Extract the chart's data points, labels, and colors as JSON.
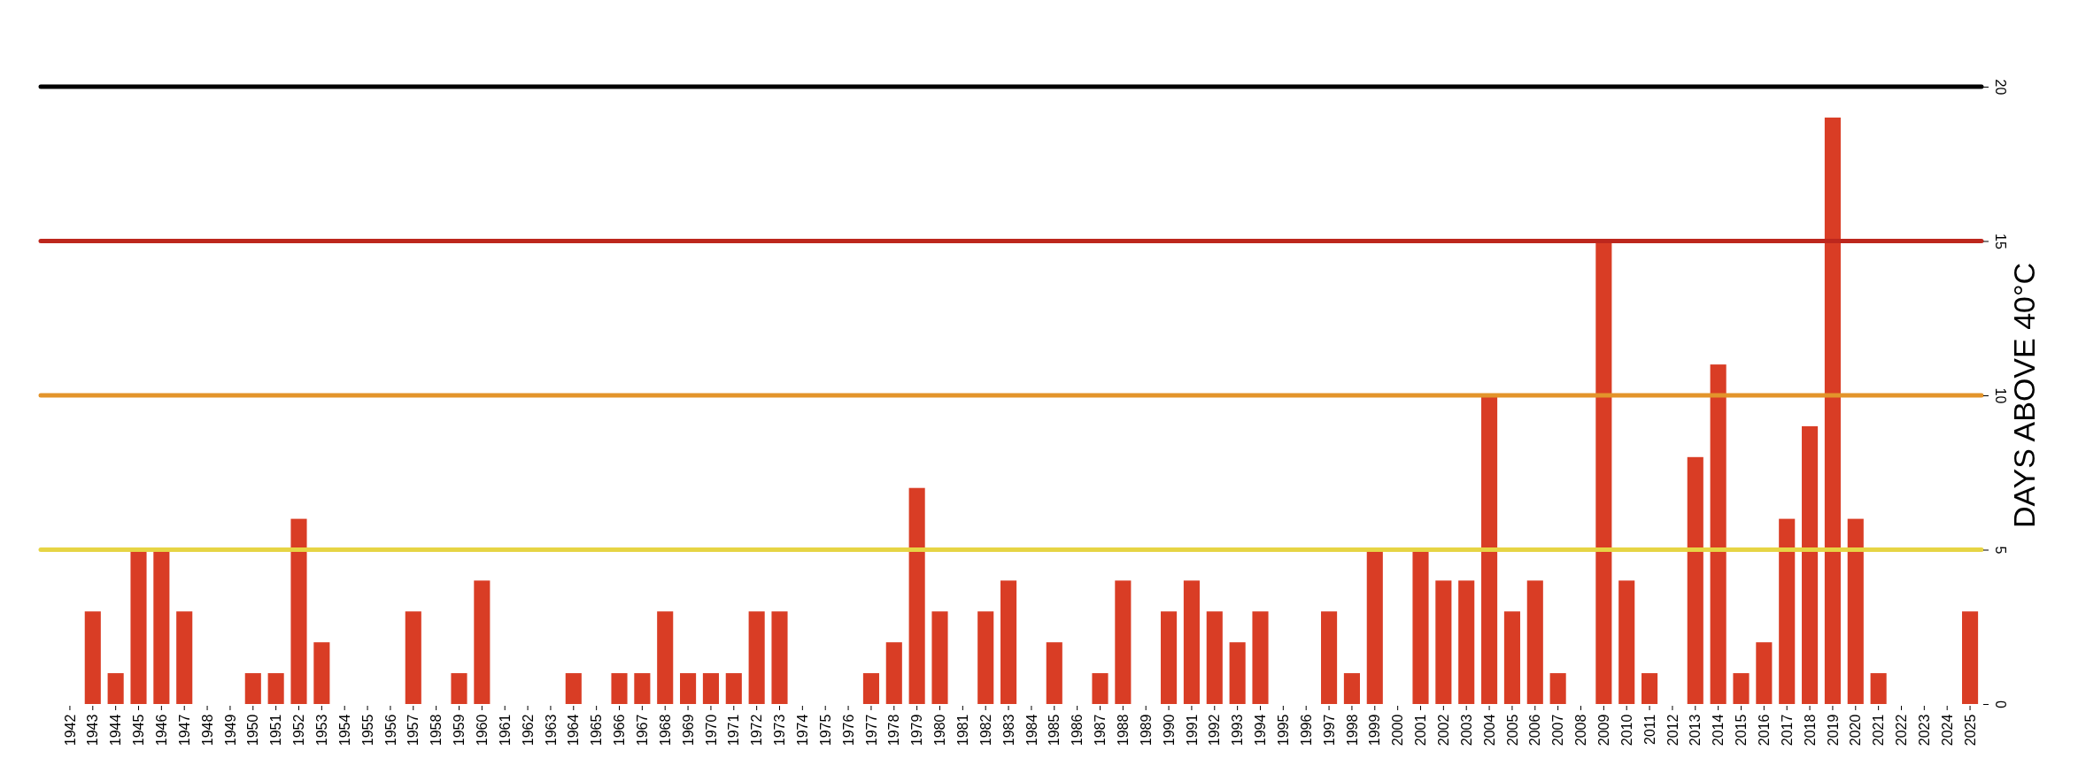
{
  "chart_data": {
    "type": "bar",
    "ylabel": "DAYS ABOVE 40°C",
    "categories": [
      "1942",
      "1943",
      "1944",
      "1945",
      "1946",
      "1947",
      "1948",
      "1949",
      "1950",
      "1951",
      "1952",
      "1953",
      "1954",
      "1955",
      "1956",
      "1957",
      "1958",
      "1959",
      "1960",
      "1961",
      "1962",
      "1963",
      "1964",
      "1965",
      "1966",
      "1967",
      "1968",
      "1969",
      "1970",
      "1971",
      "1972",
      "1973",
      "1974",
      "1975",
      "1976",
      "1977",
      "1978",
      "1979",
      "1980",
      "1981",
      "1982",
      "1983",
      "1984",
      "1985",
      "1986",
      "1987",
      "1988",
      "1989",
      "1990",
      "1991",
      "1992",
      "1993",
      "1994",
      "1995",
      "1996",
      "1997",
      "1998",
      "1999",
      "2000",
      "2001",
      "2002",
      "2003",
      "2004",
      "2005",
      "2006",
      "2007",
      "2008",
      "2009",
      "2010",
      "2011",
      "2012",
      "2013",
      "2014",
      "2015",
      "2016",
      "2017",
      "2018",
      "2019",
      "2020",
      "2021",
      "2022",
      "2023",
      "2024",
      "2025"
    ],
    "values": [
      0,
      3,
      1,
      5,
      5,
      3,
      0,
      0,
      1,
      1,
      6,
      2,
      0,
      0,
      0,
      3,
      0,
      1,
      4,
      0,
      0,
      0,
      1,
      0,
      1,
      1,
      3,
      1,
      1,
      1,
      3,
      3,
      0,
      0,
      0,
      1,
      2,
      7,
      3,
      0,
      3,
      4,
      0,
      2,
      0,
      1,
      4,
      0,
      3,
      4,
      3,
      2,
      3,
      0,
      0,
      3,
      1,
      5,
      0,
      5,
      4,
      4,
      10,
      3,
      4,
      1,
      0,
      15,
      4,
      1,
      0,
      8,
      11,
      1,
      2,
      6,
      9,
      19,
      6,
      1,
      0,
      0,
      0,
      3
    ],
    "color": "#d93d25",
    "ylim": [
      0,
      20
    ],
    "yticks": [
      0,
      5,
      10,
      15,
      20
    ],
    "ref_lines": [
      {
        "axis": "y",
        "value": 5,
        "color": "#e6d444"
      },
      {
        "axis": "y",
        "value": 10,
        "color": "#e3942b"
      },
      {
        "axis": "y",
        "value": 15,
        "color": "#bd271d"
      },
      {
        "axis": "y",
        "value": 20,
        "color": "#000000"
      }
    ]
  }
}
